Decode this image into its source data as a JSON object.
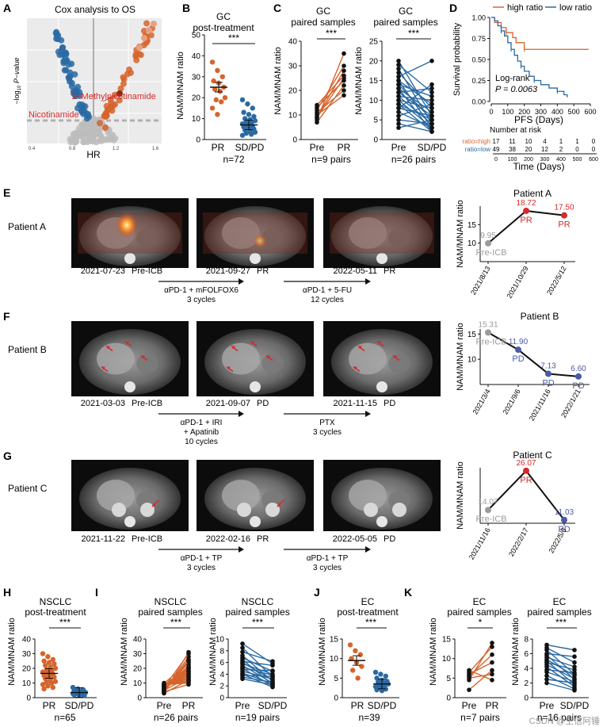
{
  "figure": {
    "panel_letters": [
      "A",
      "B",
      "C",
      "D",
      "E",
      "F",
      "G",
      "H",
      "I",
      "J",
      "K"
    ],
    "watermark": "CSDN @生信阿锤"
  },
  "colors": {
    "orange": "#d6642c",
    "blue": "#2a6aa3",
    "grey": "#9b9b9b",
    "purple": "#4b5aa8",
    "red": "#d52a2a",
    "black": "#111111"
  },
  "common": {
    "yaxis_ratio": "NAM/MNAM ratio",
    "pr": "PR",
    "sdpd": "SD/PD",
    "pre": "Pre",
    "sig3": "***",
    "sig1": "*",
    "pre_icb": "Pre-ICB",
    "pd": "PD"
  },
  "panelA": {
    "title": "Cox analysis to OS",
    "xlabel": "HR",
    "ylabel": "−log10 P−value",
    "xticks": [
      "0.4",
      "0.8",
      "1.2",
      "1.6"
    ],
    "ylabel_pre": "−log",
    "ylabel_sub": "10",
    "ylabel_post": " P−value",
    "label_mnam": "1−Methylnicotinamide",
    "label_nam": "Nicotinamide"
  },
  "panelB": {
    "title_line1": "GC",
    "title_line2": "post-treatment",
    "yticks": [
      "0",
      "10",
      "20",
      "30",
      "40",
      "50"
    ],
    "n": "n=72",
    "chart_data": {
      "type": "scatter",
      "title": "GC post-treatment",
      "ylabel": "NAM/MNAM ratio",
      "ylim": [
        0,
        50
      ],
      "groups": [
        {
          "name": "PR",
          "values": [
            37,
            33,
            30,
            28,
            27,
            25,
            24,
            23,
            20,
            19,
            18,
            15,
            12
          ]
        },
        {
          "name": "SD/PD",
          "values": [
            19,
            17,
            15,
            13,
            12,
            11,
            10,
            9.5,
            9,
            8.5,
            8,
            7.5,
            7,
            6.5,
            6,
            5.5,
            5,
            4.5,
            4,
            3.5,
            3,
            2.5,
            2
          ]
        }
      ],
      "means": [
        25,
        7
      ]
    }
  },
  "panelC": {
    "left_title_line1": "GC",
    "left_title_line2": "paired samples",
    "right_title_line1": "GC",
    "right_title_line2": "paired samples",
    "left_yticks": [
      "0",
      "10",
      "20",
      "30",
      "40"
    ],
    "right_yticks": [
      "0",
      "5",
      "10",
      "15",
      "20",
      "25"
    ],
    "left_n": "n=9 pairs",
    "right_n": "n=26 pairs",
    "chart_data": [
      {
        "type": "line",
        "title": "GC paired samples",
        "ylim": [
          0,
          40
        ],
        "categories": [
          "Pre",
          "PR"
        ],
        "pairs": [
          [
            7,
            22
          ],
          [
            8,
            35
          ],
          [
            9,
            25
          ],
          [
            9,
            28
          ],
          [
            10,
            18
          ],
          [
            11,
            20
          ],
          [
            12,
            30
          ],
          [
            13,
            24
          ],
          [
            14,
            26
          ]
        ]
      },
      {
        "type": "line",
        "title": "GC paired samples",
        "ylim": [
          0,
          25
        ],
        "categories": [
          "Pre",
          "SD/PD"
        ],
        "pairs": [
          [
            20,
            6
          ],
          [
            19,
            12
          ],
          [
            18,
            4
          ],
          [
            17,
            8
          ],
          [
            16,
            20
          ],
          [
            15,
            9
          ],
          [
            15,
            3
          ],
          [
            14,
            11
          ],
          [
            14,
            5
          ],
          [
            13,
            7
          ],
          [
            13,
            2
          ],
          [
            12,
            13
          ],
          [
            12,
            6
          ],
          [
            11,
            4
          ],
          [
            11,
            10
          ],
          [
            10,
            3
          ],
          [
            10,
            8
          ],
          [
            9,
            5
          ],
          [
            9,
            2
          ],
          [
            8,
            6
          ],
          [
            8,
            14
          ],
          [
            7,
            3
          ],
          [
            6,
            9
          ],
          [
            5,
            4
          ],
          [
            4,
            2
          ],
          [
            3,
            5
          ]
        ]
      }
    ]
  },
  "panelD": {
    "legend_high": "high ratio",
    "legend_low": "low ratio",
    "ylabel": "Survival probability",
    "xlabel": "PFS (Days)",
    "logrank": "Log-rank",
    "pvalue": "P = 0.0063",
    "yticks": [
      "0.00",
      "0.25",
      "0.50",
      "0.75",
      "1.00"
    ],
    "xticks": [
      "0",
      "100",
      "200",
      "300",
      "400",
      "500",
      "600"
    ],
    "risk_title": "Number at risk",
    "risk_high_label": "ratio=high",
    "risk_low_label": "ratio=low",
    "risk_high": [
      "17",
      "11",
      "10",
      "4",
      "1",
      "1",
      "0"
    ],
    "risk_low": [
      "49",
      "38",
      "20",
      "12",
      "2",
      "0",
      "0"
    ],
    "time_label": "Time (Days)",
    "chart_data": {
      "type": "line",
      "xlim": [
        0,
        600
      ],
      "ylim": [
        0,
        1
      ],
      "series": [
        {
          "name": "high ratio",
          "x": [
            0,
            20,
            60,
            90,
            130,
            150,
            200,
            590
          ],
          "y": [
            1.0,
            0.94,
            0.88,
            0.82,
            0.76,
            0.7,
            0.62,
            0.62
          ]
        },
        {
          "name": "low ratio",
          "x": [
            0,
            20,
            40,
            60,
            80,
            100,
            120,
            140,
            160,
            180,
            200,
            230,
            260,
            300,
            350,
            400,
            440,
            460
          ],
          "y": [
            1.0,
            0.96,
            0.9,
            0.84,
            0.78,
            0.7,
            0.62,
            0.55,
            0.48,
            0.42,
            0.36,
            0.3,
            0.25,
            0.2,
            0.16,
            0.12,
            0.08,
            0.05
          ]
        }
      ]
    }
  },
  "panelE": {
    "patient": "Patient A",
    "scans": [
      {
        "date": "2021-07-23",
        "status": "Pre-ICB"
      },
      {
        "date": "2021-09-27",
        "status": "PR"
      },
      {
        "date": "2022-05-11",
        "status": "PR"
      }
    ],
    "treatments": [
      {
        "line1": "αPD-1 + mFOLFOX6",
        "line2": "3 cycles",
        "line3": ""
      },
      {
        "line1": "αPD-1 + 5-FU",
        "line2": "12 cycles",
        "line3": ""
      }
    ],
    "chart_data": {
      "type": "line",
      "title": "Patient A",
      "ylabel": "NAM/MNAM ratio",
      "ylim": [
        5,
        20
      ],
      "categories": [
        "2021/8/13",
        "2021/10/29",
        "2022/5/12"
      ],
      "values": [
        9.95,
        18.72,
        17.5
      ],
      "point_labels": [
        "9.95",
        "18.72",
        "17.50"
      ],
      "status": [
        "Pre-ICB",
        "PR",
        "PR"
      ],
      "yticks": [
        "10",
        "15"
      ]
    }
  },
  "panelF": {
    "patient": "Patient B",
    "scans": [
      {
        "date": "2021-03-03",
        "status": "Pre-ICB"
      },
      {
        "date": "2021-09-07",
        "status": "PD"
      },
      {
        "date": "2021-11-15",
        "status": "PD"
      }
    ],
    "treatments": [
      {
        "line1": "αPD-1 + IRI",
        "line2": "+ Apatinib",
        "line3": "10 cycles"
      },
      {
        "line1": "PTX",
        "line2": "3 cycles",
        "line3": ""
      }
    ],
    "chart_data": {
      "type": "line",
      "title": "Patient B",
      "ylabel": "NAM/MNAM ratio",
      "ylim": [
        5,
        16
      ],
      "categories": [
        "2021/3/4",
        "2021/9/6",
        "2021/11/16",
        "2022/1/21"
      ],
      "values": [
        15.31,
        11.9,
        7.13,
        6.6
      ],
      "point_labels": [
        "15.31",
        "11.90",
        "7.13",
        "6.60"
      ],
      "status": [
        "Pre-ICB",
        "PD",
        "PD",
        "PD"
      ],
      "yticks": [
        "10",
        "15"
      ]
    }
  },
  "panelG": {
    "patient": "Patient C",
    "scans": [
      {
        "date": "2021-11-22",
        "status": "Pre-ICB"
      },
      {
        "date": "2022-02-16",
        "status": "PR"
      },
      {
        "date": "2022-05-05",
        "status": "PD"
      }
    ],
    "treatments": [
      {
        "line1": "αPD-1 + TP",
        "line2": "3 cycles",
        "line3": ""
      },
      {
        "line1": "αPD-1 + TP",
        "line2": "3 cycles",
        "line3": ""
      }
    ],
    "chart_data": {
      "type": "line",
      "title": "Patient C",
      "ylabel": "NAM/MNAM ratio",
      "ylim": [
        10,
        27
      ],
      "categories": [
        "2021/11/16",
        "2022/2/17",
        "2022/5/6"
      ],
      "values": [
        14.07,
        26.07,
        11.03
      ],
      "point_labels": [
        "14.07",
        "26.07",
        "11.03"
      ],
      "status": [
        "Pre-ICB",
        "PR",
        "PD"
      ],
      "yticks": []
    }
  },
  "panelH": {
    "title_line1": "NSCLC",
    "title_line2": "post-treatment",
    "yticks": [
      "0",
      "10",
      "20",
      "30",
      "40"
    ],
    "n": "n=65",
    "chart_data": {
      "type": "scatter",
      "title": "NSCLC post-treatment",
      "ylim": [
        0,
        40
      ],
      "groups": [
        {
          "name": "PR",
          "values": [
            30,
            28,
            26,
            25,
            24,
            23,
            22,
            21,
            20,
            19,
            18,
            17.5,
            17,
            16,
            15,
            14.5,
            14,
            13,
            12,
            11,
            10.5,
            10,
            9,
            8,
            7,
            6
          ]
        },
        {
          "name": "SD/PD",
          "values": [
            7,
            6,
            5.5,
            5,
            4.5,
            4.2,
            4,
            3.8,
            3.5,
            3.2,
            3,
            2.8,
            2.5,
            2.2,
            2,
            1.8,
            1.5
          ]
        }
      ],
      "means": [
        16.5,
        3.5
      ]
    }
  },
  "panelI": {
    "left_title_line1": "NSCLC",
    "left_title_line2": "paired samples",
    "right_title_line1": "NSCLC",
    "right_title_line2": "paired samples",
    "left_yticks": [
      "0",
      "10",
      "20",
      "30",
      "40"
    ],
    "right_yticks": [
      "0",
      "2",
      "4",
      "6",
      "8",
      "10"
    ],
    "left_n": "n=26 pairs",
    "right_n": "n=19 pairs",
    "chart_data": [
      {
        "type": "line",
        "title": "NSCLC paired samples",
        "ylim": [
          0,
          40
        ],
        "categories": [
          "Pre",
          "PR"
        ],
        "pairs": [
          [
            3,
            31
          ],
          [
            3.5,
            28
          ],
          [
            4,
            26
          ],
          [
            4.5,
            24
          ],
          [
            5,
            22
          ],
          [
            5,
            21
          ],
          [
            5.5,
            20
          ],
          [
            6,
            19
          ],
          [
            6,
            18
          ],
          [
            6.5,
            17
          ],
          [
            7,
            16
          ],
          [
            7,
            15
          ],
          [
            7.5,
            14
          ],
          [
            8,
            13
          ],
          [
            8,
            12
          ],
          [
            8.5,
            11
          ],
          [
            9,
            10
          ],
          [
            9,
            20
          ],
          [
            10,
            23
          ],
          [
            4,
            9
          ],
          [
            6,
            25
          ],
          [
            5,
            14
          ],
          [
            7,
            30
          ],
          [
            8,
            18
          ],
          [
            3,
            12
          ],
          [
            9,
            16
          ]
        ]
      },
      {
        "type": "line",
        "title": "NSCLC paired samples",
        "ylim": [
          0,
          10
        ],
        "categories": [
          "Pre",
          "SD/PD"
        ],
        "pairs": [
          [
            9.2,
            5.8
          ],
          [
            8.5,
            3.5
          ],
          [
            7.8,
            6.2
          ],
          [
            7.2,
            2.8
          ],
          [
            6.8,
            4.5
          ],
          [
            6.5,
            2.2
          ],
          [
            6.2,
            5.5
          ],
          [
            6.0,
            3.0
          ],
          [
            5.8,
            4.0
          ],
          [
            5.5,
            2.5
          ],
          [
            5.2,
            3.8
          ],
          [
            5.0,
            2.0
          ],
          [
            4.8,
            4.6
          ],
          [
            4.5,
            3.2
          ],
          [
            4.2,
            2.4
          ],
          [
            4.0,
            1.8
          ],
          [
            3.8,
            3.6
          ],
          [
            3.5,
            2.6
          ],
          [
            3.2,
            2.2
          ]
        ]
      }
    ]
  },
  "panelJ": {
    "title_line1": "EC",
    "title_line2": "post-treatment",
    "yticks": [
      "0",
      "5",
      "10",
      "15"
    ],
    "n": "n=39",
    "chart_data": {
      "type": "scatter",
      "title": "EC post-treatment",
      "ylim": [
        0,
        15
      ],
      "groups": [
        {
          "name": "PR",
          "values": [
            13.5,
            12,
            11,
            10,
            9,
            8,
            7,
            5
          ]
        },
        {
          "name": "SD/PD",
          "values": [
            6.5,
            6,
            5.5,
            5,
            4.5,
            4.2,
            4,
            3.8,
            3.5,
            3.2,
            3,
            2.8,
            2.5,
            2.2,
            2,
            1.8
          ]
        }
      ],
      "means": [
        9.5,
        3.5
      ]
    }
  },
  "panelK": {
    "left_title_line1": "EC",
    "left_title_line2": "paired samples",
    "right_title_line1": "EC",
    "right_title_line2": "paired samples",
    "left_yticks": [
      "0",
      "5",
      "10",
      "15"
    ],
    "right_yticks": [
      "0",
      "2",
      "4",
      "6",
      "8"
    ],
    "left_n": "n=7 pairs",
    "right_n": "n=16 pairs",
    "chart_data": [
      {
        "type": "line",
        "title": "EC paired samples",
        "ylim": [
          0,
          15
        ],
        "categories": [
          "Pre",
          "PR"
        ],
        "pairs": [
          [
            2,
            7
          ],
          [
            4.5,
            14
          ],
          [
            5,
            6
          ],
          [
            5.5,
            11
          ],
          [
            6,
            9
          ],
          [
            6.5,
            13
          ],
          [
            7,
            4.5
          ]
        ]
      },
      {
        "type": "line",
        "title": "EC paired samples",
        "ylim": [
          0,
          8
        ],
        "categories": [
          "Pre",
          "SD/PD"
        ],
        "pairs": [
          [
            7.2,
            6.5
          ],
          [
            6.8,
            4.8
          ],
          [
            6.5,
            3.2
          ],
          [
            6.0,
            5.6
          ],
          [
            5.8,
            2.5
          ],
          [
            5.5,
            4.2
          ],
          [
            5.2,
            3.0
          ],
          [
            5.0,
            1.8
          ],
          [
            4.8,
            3.8
          ],
          [
            4.5,
            2.6
          ],
          [
            4.2,
            1.5
          ],
          [
            3.8,
            3.4
          ],
          [
            3.5,
            2.2
          ],
          [
            3.0,
            1.2
          ],
          [
            2.5,
            2.0
          ],
          [
            2.0,
            1.0
          ]
        ]
      }
    ]
  }
}
